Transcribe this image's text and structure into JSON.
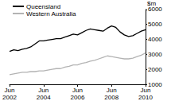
{
  "chart_data": {
    "type": "line",
    "ylabel": "$m",
    "categories": [
      "Jun 2002",
      null,
      null,
      null,
      null,
      null,
      null,
      null,
      "Jun 2004",
      null,
      null,
      null,
      null,
      null,
      null,
      null,
      "Jun 2006",
      null,
      null,
      null,
      null,
      null,
      null,
      null,
      "Jun 2008",
      null,
      null,
      null,
      null,
      null,
      null,
      null,
      "Jun 2010"
    ],
    "series": [
      {
        "name": "Queensland",
        "color": "#000000",
        "values": [
          3200,
          3300,
          3250,
          3350,
          3400,
          3500,
          3700,
          3900,
          3900,
          3950,
          4000,
          4050,
          4050,
          4150,
          4250,
          4350,
          4300,
          4450,
          4600,
          4700,
          4650,
          4600,
          4550,
          4750,
          4900,
          4800,
          4500,
          4300,
          4200,
          4250,
          4400,
          4550,
          4650
        ]
      },
      {
        "name": "Western Australia",
        "color": "#b3b3b3",
        "values": [
          1650,
          1700,
          1750,
          1800,
          1800,
          1850,
          1850,
          1900,
          1900,
          1950,
          2000,
          2050,
          2050,
          2150,
          2200,
          2300,
          2300,
          2400,
          2450,
          2550,
          2600,
          2700,
          2800,
          2900,
          2850,
          2800,
          2750,
          2700,
          2700,
          2750,
          2850,
          2950,
          3100
        ]
      }
    ],
    "ylim": [
      1000,
      6000
    ],
    "yticks": [
      1000,
      2000,
      3000,
      4000,
      5000,
      6000
    ],
    "grid": false,
    "legend": "top-left"
  }
}
